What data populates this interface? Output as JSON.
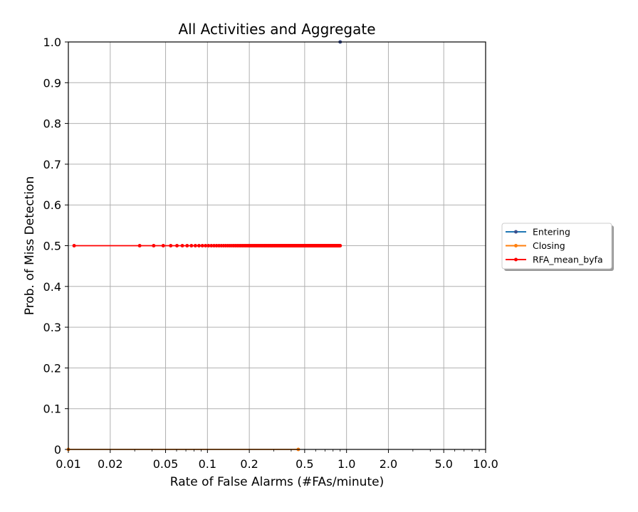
{
  "chart_data": {
    "type": "line",
    "title": "All Activities and Aggregate",
    "xlabel": "Rate of False Alarms (#FAs/minute)",
    "ylabel": "Prob. of Miss Detection",
    "x_scale": "log",
    "xlim": [
      0.01,
      10.0
    ],
    "ylim": [
      0,
      1.0
    ],
    "x_ticks": [
      0.01,
      0.02,
      0.05,
      0.1,
      0.2,
      0.5,
      1.0,
      2.0,
      5.0,
      10.0
    ],
    "x_tick_labels": [
      "0.01",
      "0.02",
      "0.05",
      "0.1",
      "0.2",
      "0.5",
      "1.0",
      "2.0",
      "5.0",
      "10.0"
    ],
    "y_ticks": [
      0,
      0.1,
      0.2,
      0.3,
      0.4,
      0.5,
      0.6,
      0.7,
      0.8,
      0.9,
      1.0
    ],
    "y_tick_labels": [
      "0",
      "0.1",
      "0.2",
      "0.3",
      "0.4",
      "0.5",
      "0.6",
      "0.7",
      "0.8",
      "0.9",
      "1.0"
    ],
    "grid": true,
    "legend_position": "center-right outside",
    "series": [
      {
        "name": "Entering",
        "color": "#1f77b4",
        "marker_color": "#3b4f8c",
        "points": [
          [
            0.9,
            1.0
          ]
        ]
      },
      {
        "name": "Closing",
        "color": "#ff7f0e",
        "marker_color": "#ff7f0e",
        "points": [
          [
            0.01,
            0.0
          ],
          [
            0.45,
            0.0
          ]
        ]
      },
      {
        "name": "RFA_mean_byfa",
        "color": "#ff0000",
        "marker_color": "#ff0000",
        "x_start": 0.011,
        "x_end": 0.9,
        "y": 0.5,
        "point_count": 150
      }
    ]
  }
}
